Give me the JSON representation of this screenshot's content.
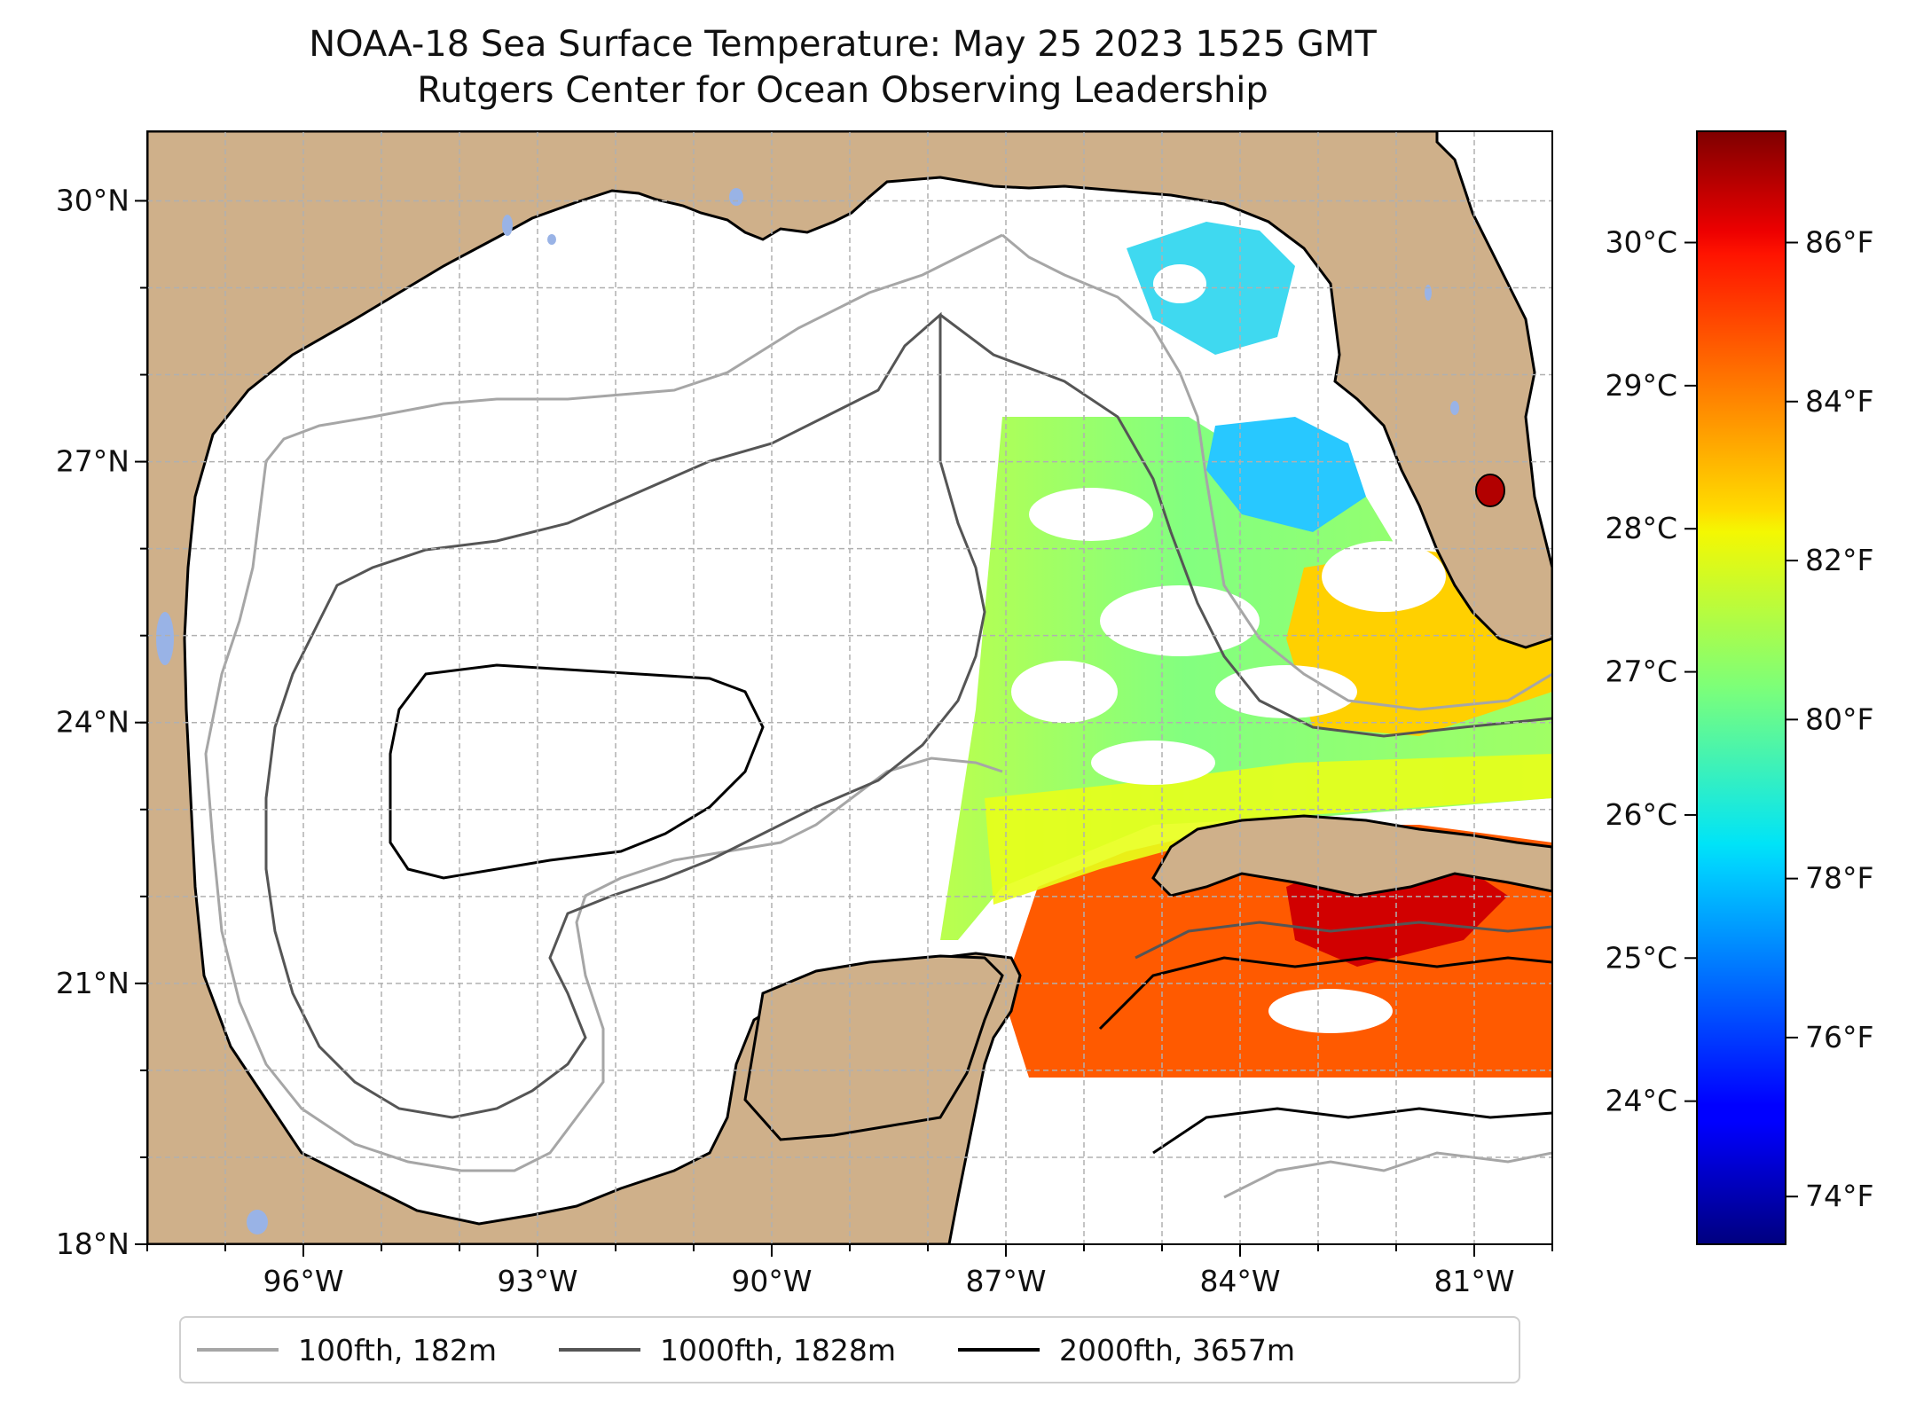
{
  "title": {
    "line1": "NOAA-18 Sea Surface Temperature: May 25 2023 1525 GMT",
    "line2": "Rutgers Center for Ocean Observing Leadership"
  },
  "map": {
    "lon_range": [
      -98.0,
      -80.0
    ],
    "lat_range": [
      18.0,
      30.8
    ],
    "grid": true,
    "lat_ticks": [
      {
        "value": 30,
        "label": "30°N"
      },
      {
        "value": 27,
        "label": "27°N"
      },
      {
        "value": 24,
        "label": "24°N"
      },
      {
        "value": 21,
        "label": "21°N"
      },
      {
        "value": 18,
        "label": "18°N"
      }
    ],
    "lon_ticks": [
      {
        "value": -96,
        "label": "96°W"
      },
      {
        "value": -93,
        "label": "93°W"
      },
      {
        "value": -90,
        "label": "90°W"
      },
      {
        "value": -87,
        "label": "87°W"
      },
      {
        "value": -84,
        "label": "84°W"
      },
      {
        "value": -81,
        "label": "81°W"
      }
    ],
    "colors": {
      "land": "#cfb08a",
      "ocean": "#ffffff",
      "water_bodies": "#99b3e6",
      "coastline": "#000000",
      "grid": "#b0b0b0"
    }
  },
  "colorbar": {
    "colormap": "jet",
    "range_f": [
      73.4,
      87.4
    ],
    "celsius_ticks": [
      {
        "value": 30,
        "label": "30°C"
      },
      {
        "value": 29,
        "label": "29°C"
      },
      {
        "value": 28,
        "label": "28°C"
      },
      {
        "value": 27,
        "label": "27°C"
      },
      {
        "value": 26,
        "label": "26°C"
      },
      {
        "value": 25,
        "label": "25°C"
      },
      {
        "value": 24,
        "label": "24°C"
      }
    ],
    "fahrenheit_ticks": [
      {
        "value": 86,
        "label": "86°F"
      },
      {
        "value": 84,
        "label": "84°F"
      },
      {
        "value": 82,
        "label": "82°F"
      },
      {
        "value": 80,
        "label": "80°F"
      },
      {
        "value": 78,
        "label": "78°F"
      },
      {
        "value": 76,
        "label": "76°F"
      },
      {
        "value": 74,
        "label": "74°F"
      }
    ]
  },
  "legend": {
    "items": [
      {
        "label": "100fth, 182m",
        "color": "#a6a6a6"
      },
      {
        "label": "1000fth, 1828m",
        "color": "#555555"
      },
      {
        "label": "2000fth, 3657m",
        "color": "#000000"
      }
    ]
  }
}
